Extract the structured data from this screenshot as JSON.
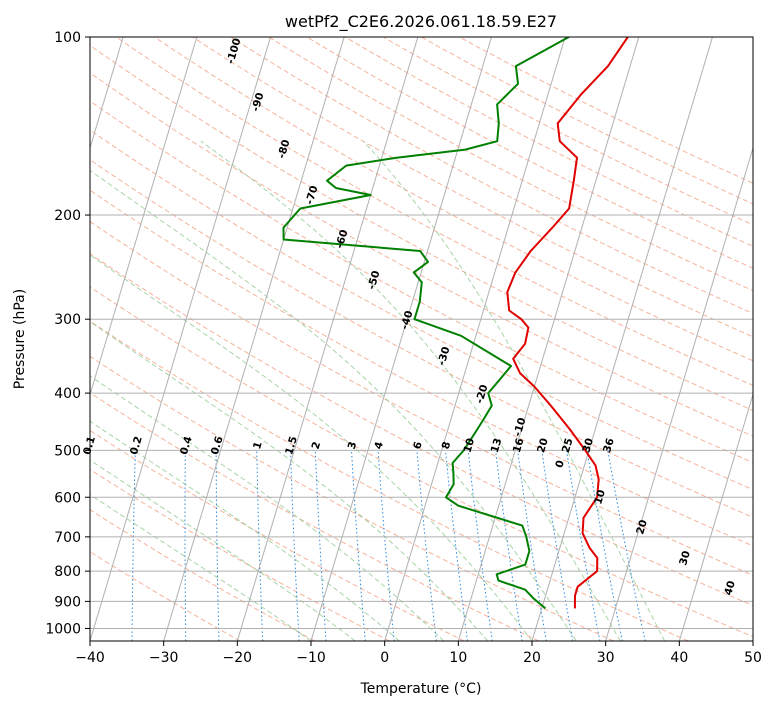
{
  "chart_data": {
    "type": "line",
    "subtype": "skew-t-log-p",
    "title": "wetPf2_C2E6.2026.061.18.59.E27",
    "xlabel": "Temperature (°C)",
    "ylabel": "Pressure (hPa)",
    "xlim": [
      -40,
      50
    ],
    "ylim": [
      1050,
      100
    ],
    "yscale": "log",
    "x_ticks": [
      -40,
      -30,
      -20,
      -10,
      0,
      10,
      20,
      30,
      40,
      50
    ],
    "y_ticks": [
      100,
      200,
      300,
      400,
      500,
      600,
      700,
      800,
      900,
      1000
    ],
    "grid": true,
    "colors": {
      "temperature": "#e00000",
      "dewpoint": "#008000",
      "isotherm": "#b0b0b0",
      "dry_adiabat": "#f5a58a",
      "moist_adiabat": "#99cc99",
      "mixing_ratio": "#2a8ae0",
      "dry_label": "#1f6fb0",
      "warm_label": "#d62020",
      "lcl_label": "#808080"
    },
    "series": [
      {
        "name": "Temperature",
        "points": [
          [
            24.5,
            925
          ],
          [
            24.0,
            880
          ],
          [
            24.0,
            850
          ],
          [
            26.0,
            800
          ],
          [
            25.5,
            760
          ],
          [
            24.0,
            730
          ],
          [
            22.5,
            690
          ],
          [
            22.0,
            650
          ],
          [
            23.0,
            600
          ],
          [
            22.5,
            560
          ],
          [
            21.5,
            530
          ],
          [
            19.5,
            500
          ],
          [
            16.5,
            460
          ],
          [
            13.0,
            420
          ],
          [
            10.0,
            390
          ],
          [
            7.5,
            370
          ],
          [
            6.0,
            350
          ],
          [
            7.0,
            330
          ],
          [
            6.8,
            310
          ],
          [
            5.5,
            300
          ],
          [
            3.5,
            290
          ],
          [
            2.5,
            270
          ],
          [
            2.8,
            250
          ],
          [
            4.0,
            230
          ],
          [
            6.0,
            210
          ],
          [
            7.5,
            195
          ],
          [
            7.0,
            175
          ],
          [
            6.5,
            160
          ],
          [
            3.5,
            150
          ],
          [
            2.5,
            140
          ],
          [
            4.5,
            125
          ],
          [
            7.0,
            112
          ],
          [
            8.5,
            100
          ]
        ]
      },
      {
        "name": "Dewpoint",
        "points": [
          [
            20.5,
            925
          ],
          [
            18.5,
            890
          ],
          [
            17.0,
            860
          ],
          [
            13.0,
            830
          ],
          [
            12.5,
            810
          ],
          [
            16.0,
            780
          ],
          [
            16.0,
            740
          ],
          [
            15.0,
            700
          ],
          [
            14.0,
            670
          ],
          [
            4.5,
            620
          ],
          [
            2.5,
            600
          ],
          [
            3.0,
            570
          ],
          [
            2.5,
            545
          ],
          [
            2.0,
            525
          ],
          [
            3.0,
            500
          ],
          [
            4.0,
            460
          ],
          [
            4.5,
            440
          ],
          [
            5.0,
            420
          ],
          [
            4.0,
            400
          ],
          [
            5.0,
            380
          ],
          [
            6.0,
            360
          ],
          [
            -2.0,
            320
          ],
          [
            -9.0,
            300
          ],
          [
            -9.0,
            280
          ],
          [
            -9.5,
            260
          ],
          [
            -11.0,
            250
          ],
          [
            -9.5,
            240
          ],
          [
            -11.0,
            230
          ],
          [
            -30.0,
            220
          ],
          [
            -30.5,
            210
          ],
          [
            -29.0,
            195
          ],
          [
            -20.0,
            185
          ],
          [
            -25.0,
            180
          ],
          [
            -26.5,
            175
          ],
          [
            -24.5,
            165
          ],
          [
            -18.0,
            160
          ],
          [
            -9.0,
            155
          ],
          [
            -5.0,
            150
          ],
          [
            -5.5,
            140
          ],
          [
            -6.5,
            130
          ],
          [
            -4.5,
            120
          ],
          [
            -5.5,
            112
          ],
          [
            0.5,
            100
          ]
        ]
      }
    ],
    "mixing_ratio_labels": [
      "0.1",
      "0.2",
      "0.4",
      "0.6",
      "1",
      "1.5",
      "2",
      "3",
      "4",
      "6",
      "8",
      "10",
      "13",
      "16",
      "20",
      "25",
      "30",
      "36"
    ],
    "mixing_ratio_values": [
      0.1,
      0.2,
      0.4,
      0.6,
      1,
      1.5,
      2,
      3,
      4,
      6,
      8,
      10,
      13,
      16,
      20,
      25,
      30,
      36
    ],
    "isotherm_labels_cold": [
      "-100",
      "-90",
      "-80",
      "-70",
      "-60",
      "-50",
      "-40",
      "-30",
      "-20",
      "-10"
    ],
    "isotherm_labels_warm": [
      "0",
      "10",
      "20",
      "30",
      "40"
    ]
  }
}
